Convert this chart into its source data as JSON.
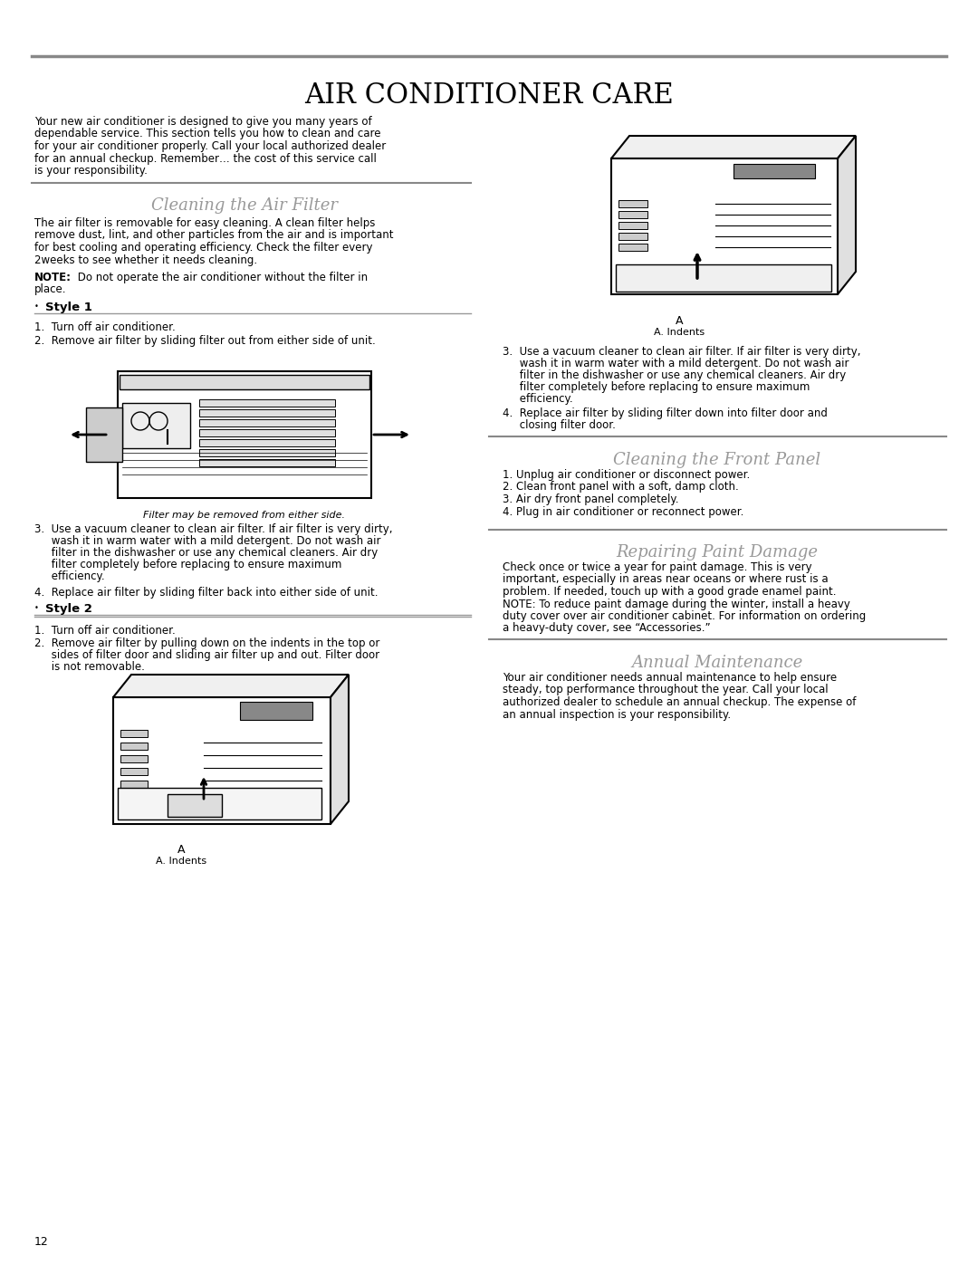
{
  "title": "AIR CONDITIONER CARE",
  "page_number": "12",
  "bg_color": "#ffffff",
  "title_color": "#000000",
  "section_color": "#999999",
  "intro_text": "Your new air conditioner is designed to give you many years of dependable service. This section tells you how to clean and care for your air conditioner properly. Call your local authorized dealer for an annual checkup. Remember… the cost of this service call is your responsibility.",
  "section1_title": "Cleaning the Air Filter",
  "section1_intro": "The air filter is removable for easy cleaning. A clean filter helps remove dust, lint, and other particles from the air and is important for best cooling and operating efficiency. Check the filter every 2weeks to see whether it needs cleaning.",
  "section1_note": "NOTE: Do not operate the air conditioner without the filter in place.",
  "style1_title": "Style 1",
  "style1_steps": [
    "1.  Turn off air conditioner.",
    "2.  Remove air filter by sliding filter out from either side of unit."
  ],
  "style1_caption": "Filter may be removed from either side.",
  "style1_steps2": [
    "3.  Use a vacuum cleaner to clean air filter. If air filter is very dirty, wash it in warm water with a mild detergent. Do not wash air filter in the dishwasher or use any chemical cleaners. Air dry filter completely before replacing to ensure maximum efficiency.",
    "4.  Replace air filter by sliding filter back into either side of unit."
  ],
  "style2_title": "Style 2",
  "style2_steps": [
    "1.  Turn off air conditioner.",
    "2.  Remove air filter by pulling down on the indents in the top or sides of filter door and sliding air filter up and out. Filter door is not removable."
  ],
  "style2_right_steps3": [
    "3.  Use a vacuum cleaner to clean air filter. If air filter is very dirty, wash it in warm water with a mild detergent. Do not wash air filter in the dishwasher or use any chemical cleaners. Air dry filter completely before replacing to ensure maximum efficiency.",
    "4.   Replace air filter by sliding filter down into filter door and closing filter door."
  ],
  "section2_title": "Cleaning the Front Panel",
  "section2_steps": [
    "1. Unplug air conditioner or disconnect power.",
    "2. Clean front panel with a soft, damp cloth.",
    "3. Air dry front panel completely.",
    "4. Plug in air conditioner or reconnect power."
  ],
  "section3_title": "Repairing Paint Damage",
  "section3_text": "Check once or twice a year for paint damage. This is very important, especially in areas near oceans or where rust is a problem. If needed, touch up with a good grade enamel paint. NOTE: To reduce paint damage during the winter, install a heavy duty cover over air conditioner cabinet. For information on ordering a heavy-duty cover, see “Accessories.”",
  "section4_title": "Annual Maintenance",
  "section4_text": "Your air conditioner needs annual maintenance to help ensure steady, top performance throughout the year. Call your local authorized dealer to schedule an annual checkup. The expense of an annual inspection is your responsibility.",
  "indent_label": "A. Indents",
  "indent_label_a": "A"
}
